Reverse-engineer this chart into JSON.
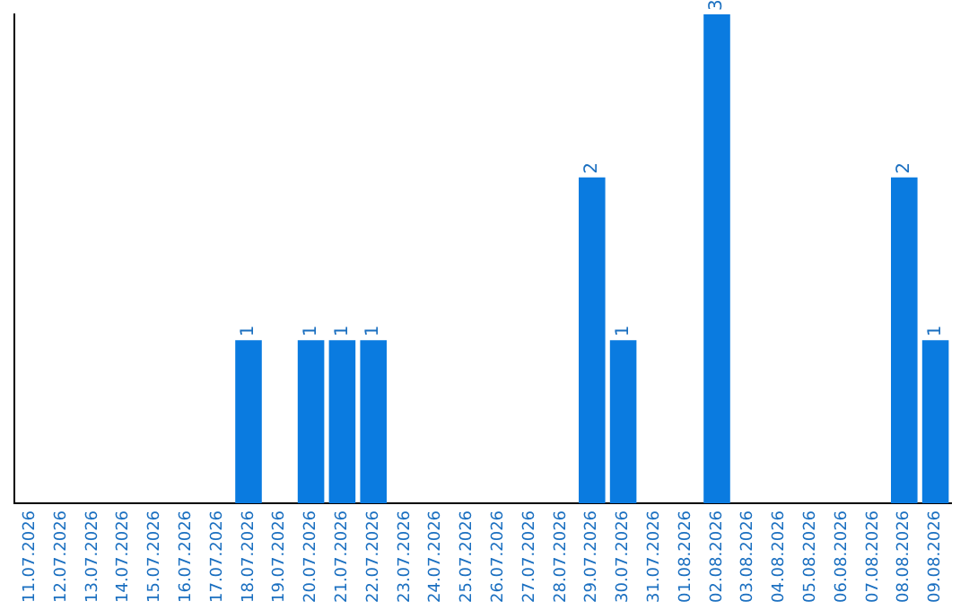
{
  "chart_data": {
    "type": "bar",
    "categories": [
      "11.07.2026",
      "12.07.2026",
      "13.07.2026",
      "14.07.2026",
      "15.07.2026",
      "16.07.2026",
      "17.07.2026",
      "18.07.2026",
      "19.07.2026",
      "20.07.2026",
      "21.07.2026",
      "22.07.2026",
      "23.07.2026",
      "24.07.2026",
      "25.07.2026",
      "26.07.2026",
      "27.07.2026",
      "28.07.2026",
      "29.07.2026",
      "30.07.2026",
      "31.07.2026",
      "01.08.2026",
      "02.08.2026",
      "03.08.2026",
      "04.08.2026",
      "05.08.2026",
      "06.08.2026",
      "07.08.2026",
      "08.08.2026",
      "09.08.2026"
    ],
    "values": [
      0,
      0,
      0,
      0,
      0,
      0,
      0,
      1,
      0,
      1,
      1,
      1,
      0,
      0,
      0,
      0,
      0,
      0,
      2,
      1,
      0,
      0,
      3,
      0,
      0,
      0,
      0,
      0,
      2,
      1
    ],
    "value_labels": [
      null,
      null,
      null,
      null,
      null,
      null,
      null,
      "1",
      null,
      "1",
      "1",
      "1",
      null,
      null,
      null,
      null,
      null,
      null,
      "2",
      "1",
      null,
      null,
      "3",
      null,
      null,
      null,
      null,
      null,
      "2",
      "1"
    ],
    "color": "#0a7be0"
  }
}
